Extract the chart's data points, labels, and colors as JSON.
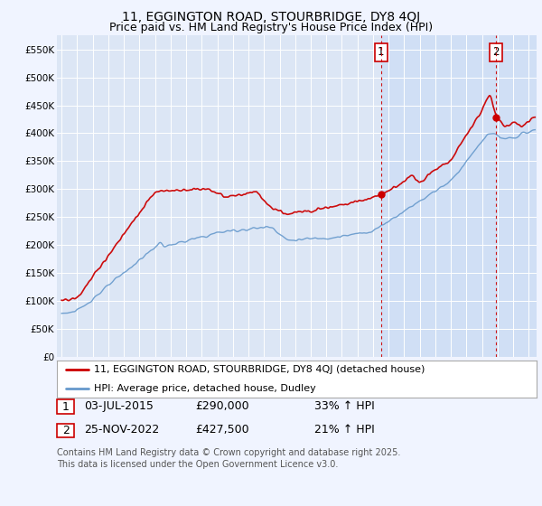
{
  "title": "11, EGGINGTON ROAD, STOURBRIDGE, DY8 4QJ",
  "subtitle": "Price paid vs. HM Land Registry's House Price Index (HPI)",
  "ylabel_ticks": [
    "£0",
    "£50K",
    "£100K",
    "£150K",
    "£200K",
    "£250K",
    "£300K",
    "£350K",
    "£400K",
    "£450K",
    "£500K",
    "£550K"
  ],
  "ytick_values": [
    0,
    50000,
    100000,
    150000,
    200000,
    250000,
    300000,
    350000,
    400000,
    450000,
    500000,
    550000
  ],
  "ylim": [
    0,
    575000
  ],
  "xlim_start": 1994.7,
  "xlim_end": 2025.5,
  "background_color": "#f0f4ff",
  "plot_bg_color": "#dce6f5",
  "highlight_bg_color": "#d0dff5",
  "grid_color": "#ffffff",
  "red_line_color": "#cc0000",
  "blue_line_color": "#6699cc",
  "vline_color": "#cc0000",
  "purchase1_year": 2015.5,
  "purchase2_year": 2022.9,
  "purchase1_price": 290000,
  "purchase2_price": 427500,
  "legend_label1": "11, EGGINGTON ROAD, STOURBRIDGE, DY8 4QJ (detached house)",
  "legend_label2": "HPI: Average price, detached house, Dudley",
  "annotation1_label": "1",
  "annotation2_label": "2",
  "note1_box": "1",
  "note1_date": "03-JUL-2015",
  "note1_price": "£290,000",
  "note1_hpi": "33% ↑ HPI",
  "note2_box": "2",
  "note2_date": "25-NOV-2022",
  "note2_price": "£427,500",
  "note2_hpi": "21% ↑ HPI",
  "footer": "Contains HM Land Registry data © Crown copyright and database right 2025.\nThis data is licensed under the Open Government Licence v3.0.",
  "title_fontsize": 10,
  "subtitle_fontsize": 9,
  "tick_fontsize": 7.5,
  "legend_fontsize": 8,
  "note_fontsize": 9,
  "footer_fontsize": 7
}
